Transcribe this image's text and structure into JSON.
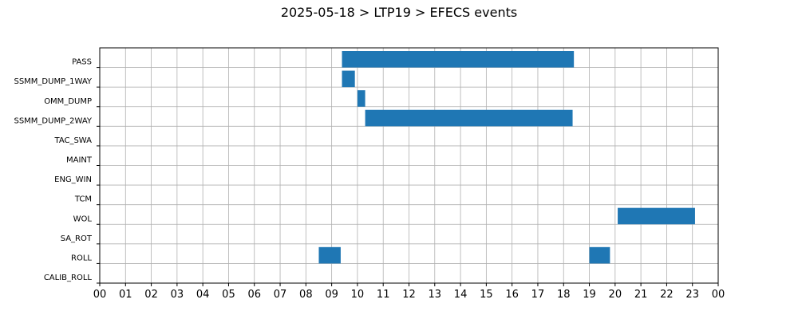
{
  "chart_data": {
    "type": "gantt",
    "title": "2025-05-18 > LTP19 > EFECS events",
    "xlabel": "",
    "ylabel": "",
    "x_unit": "hour of day",
    "xlim": [
      0,
      24
    ],
    "x_tick_labels": [
      "00",
      "01",
      "02",
      "03",
      "04",
      "05",
      "06",
      "07",
      "08",
      "09",
      "10",
      "11",
      "12",
      "13",
      "14",
      "15",
      "16",
      "17",
      "18",
      "19",
      "20",
      "21",
      "22",
      "23",
      "00"
    ],
    "grid": true,
    "bar_color": "#1f77b4",
    "categories": [
      "PASS",
      "SSMM_DUMP_1WAY",
      "OMM_DUMP",
      "SSMM_DUMP_2WAY",
      "TAC_SWA",
      "MAINT",
      "ENG_WIN",
      "TCM",
      "WOL",
      "SA_ROT",
      "ROLL",
      "CALIB_ROLL"
    ],
    "events": [
      {
        "category": "PASS",
        "start": 9.4,
        "end": 18.4
      },
      {
        "category": "SSMM_DUMP_1WAY",
        "start": 9.4,
        "end": 9.9
      },
      {
        "category": "OMM_DUMP",
        "start": 10.0,
        "end": 10.3
      },
      {
        "category": "SSMM_DUMP_2WAY",
        "start": 10.3,
        "end": 18.35
      },
      {
        "category": "WOL",
        "start": 20.1,
        "end": 23.1
      },
      {
        "category": "ROLL",
        "start": 8.5,
        "end": 9.35
      },
      {
        "category": "ROLL",
        "start": 19.0,
        "end": 19.8
      }
    ]
  }
}
